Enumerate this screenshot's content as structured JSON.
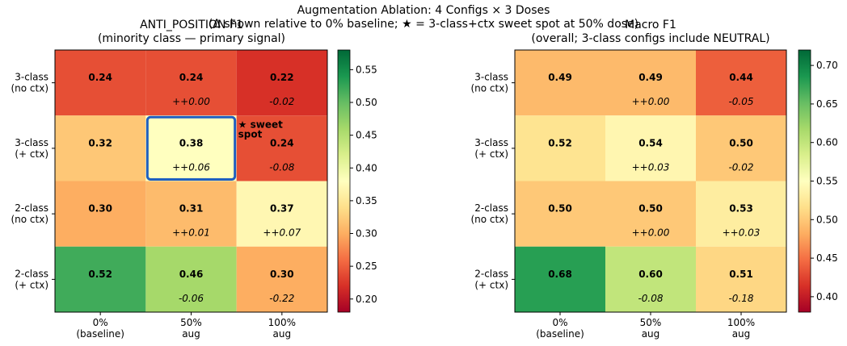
{
  "title": "Augmentation Ablation: 4 Configs × 3 Doses",
  "subtitle": "(Δ shown relative to 0% baseline; ★ = 3-class+ctx sweet spot at 50% dose)",
  "chart_data": [
    {
      "type": "heatmap",
      "title": "ANTI_POSITION F1",
      "subtitle": "(minority class — primary signal)",
      "x_categories": [
        "0%\n(baseline)",
        "50%\naug",
        "100%\naug"
      ],
      "y_categories": [
        "3-class\n(no ctx)",
        "3-class\n(+ ctx)",
        "2-class\n(no ctx)",
        "2-class\n(+ ctx)"
      ],
      "values": [
        [
          0.24,
          0.24,
          0.22
        ],
        [
          0.32,
          0.38,
          0.24
        ],
        [
          0.3,
          0.31,
          0.37
        ],
        [
          0.52,
          0.46,
          0.3
        ]
      ],
      "value_labels": [
        [
          "0.24",
          "0.24",
          "0.22"
        ],
        [
          "0.32",
          "0.38",
          "0.24"
        ],
        [
          "0.30",
          "0.31",
          "0.37"
        ],
        [
          "0.52",
          "0.46",
          "0.30"
        ]
      ],
      "deltas": [
        [
          null,
          0,
          -0.02
        ],
        [
          null,
          0.06,
          -0.08
        ],
        [
          null,
          0.01,
          0.07
        ],
        [
          null,
          -0.06,
          -0.22
        ]
      ],
      "delta_labels": [
        [
          null,
          "++0.00",
          "-0.02"
        ],
        [
          null,
          "++0.06",
          "-0.08"
        ],
        [
          null,
          "++0.01",
          "++0.07"
        ],
        [
          null,
          "-0.06",
          "-0.22"
        ]
      ],
      "emphasized": [
        [
          false,
          false,
          false
        ],
        [
          false,
          true,
          false
        ],
        [
          false,
          false,
          true
        ],
        [
          false,
          true,
          false
        ]
      ],
      "highlight": [
        1,
        1
      ],
      "annotation": "★ sweet\nspot",
      "colormap": [
        "#a50026",
        "#d73027",
        "#f46d43",
        "#fdae61",
        "#fee08b",
        "#ffffbf",
        "#d9ef8b",
        "#a6d96a",
        "#66bd63",
        "#1a9850",
        "#006837"
      ],
      "zlim": [
        0.18,
        0.58
      ],
      "zticks": [
        {
          "value": 0.2,
          "label": "0.20"
        },
        0.25,
        {
          "value": 0.3,
          "label": "0.30"
        },
        0.35,
        {
          "value": 0.4,
          "label": "0.40"
        },
        0.45,
        {
          "value": 0.5,
          "label": "0.50"
        },
        0.55
      ]
    },
    {
      "type": "heatmap",
      "title": "Macro F1",
      "subtitle": "(overall; 3-class configs include NEUTRAL)",
      "x_categories": [
        "0%\n(baseline)",
        "50%\naug",
        "100%\naug"
      ],
      "y_categories": [
        "3-class\n(no ctx)",
        "3-class\n(+ ctx)",
        "2-class\n(no ctx)",
        "2-class\n(+ ctx)"
      ],
      "values": [
        [
          0.49,
          0.49,
          0.44
        ],
        [
          0.52,
          0.54,
          0.5
        ],
        [
          0.5,
          0.5,
          0.53
        ],
        [
          0.68,
          0.6,
          0.51
        ]
      ],
      "value_labels": [
        [
          "0.49",
          "0.49",
          "0.44"
        ],
        [
          "0.52",
          "0.54",
          "0.50"
        ],
        [
          "0.50",
          "0.50",
          "0.53"
        ],
        [
          "0.68",
          "0.60",
          "0.51"
        ]
      ],
      "deltas": [
        [
          null,
          0,
          -0.05
        ],
        [
          null,
          0.03,
          -0.02
        ],
        [
          null,
          0,
          0.03
        ],
        [
          null,
          -0.08,
          -0.18
        ]
      ],
      "delta_labels": [
        [
          null,
          "++0.00",
          "-0.05"
        ],
        [
          null,
          "++0.03",
          "-0.02"
        ],
        [
          null,
          "++0.00",
          "++0.03"
        ],
        [
          null,
          "-0.08",
          "-0.18"
        ]
      ],
      "emphasized": [
        [
          false,
          false,
          false
        ],
        [
          false,
          true,
          false
        ],
        [
          false,
          false,
          false
        ],
        [
          false,
          true,
          false
        ]
      ],
      "colormap": [
        "#a50026",
        "#d73027",
        "#f46d43",
        "#fdae61",
        "#fee08b",
        "#ffffbf",
        "#d9ef8b",
        "#a6d96a",
        "#66bd63",
        "#1a9850",
        "#006837"
      ],
      "zlim": [
        0.38,
        0.72
      ],
      "zticks": [
        {
          "value": 0.4,
          "label": "0.40"
        },
        0.45,
        {
          "value": 0.5,
          "label": "0.50"
        },
        0.55,
        {
          "value": 0.6,
          "label": "0.60"
        },
        0.65,
        {
          "value": 0.7,
          "label": "0.70"
        }
      ]
    }
  ]
}
